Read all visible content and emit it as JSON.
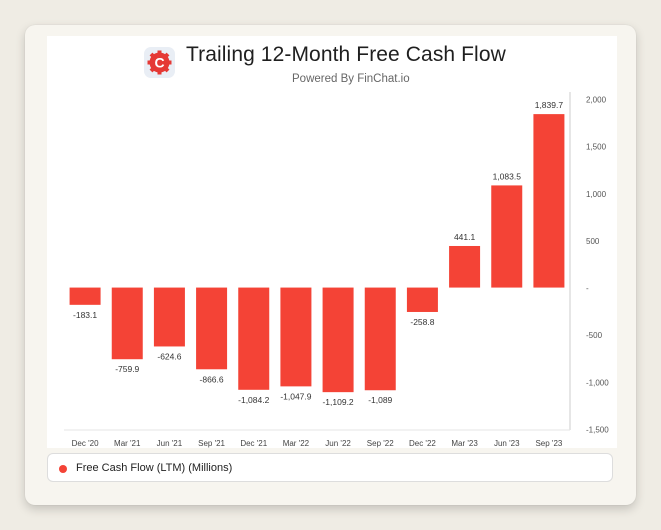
{
  "header": {
    "title": "Trailing 12-Month Free Cash Flow",
    "subtitle": "Powered By FinChat.io",
    "logo_icon": "finchat-logo-icon",
    "logo_letter": "C"
  },
  "colors": {
    "bar": "#f44336",
    "logo": "#e53935",
    "axis": "#cccccc"
  },
  "chart_data": {
    "type": "bar",
    "title": "Trailing 12-Month Free Cash Flow",
    "subtitle": "Powered By FinChat.io",
    "categories": [
      "Dec '20",
      "Mar '21",
      "Jun '21",
      "Sep '21",
      "Dec '21",
      "Mar '22",
      "Jun '22",
      "Sep '22",
      "Dec '22",
      "Mar '23",
      "Jun '23",
      "Sep '23"
    ],
    "series": [
      {
        "name": "Free Cash Flow (LTM) (Millions)",
        "values": [
          -183.1,
          -759.9,
          -624.6,
          -866.6,
          -1084.2,
          -1047.9,
          -1109.2,
          -1089,
          -258.8,
          441.1,
          1083.5,
          1839.7
        ],
        "labels": [
          "-183.1",
          "-759.9",
          "-624.6",
          "-866.6",
          "-1,084.2",
          "-1,047.9",
          "-1,109.2",
          "-1,089",
          "-258.8",
          "441.1",
          "1,083.5",
          "1,839.7"
        ]
      }
    ],
    "yticks": [
      2000,
      1500,
      1000,
      500,
      0,
      -500,
      -1000,
      -1500
    ],
    "ytick_labels": [
      "2,000",
      "1,500",
      "1,000",
      "500",
      "-",
      "-500",
      "-1,000",
      "-1,500"
    ],
    "ylim": [
      -1500,
      2000
    ],
    "y_axis_side": "right",
    "grid": false,
    "legend_position": "bottom",
    "xlabel": "",
    "ylabel": ""
  }
}
